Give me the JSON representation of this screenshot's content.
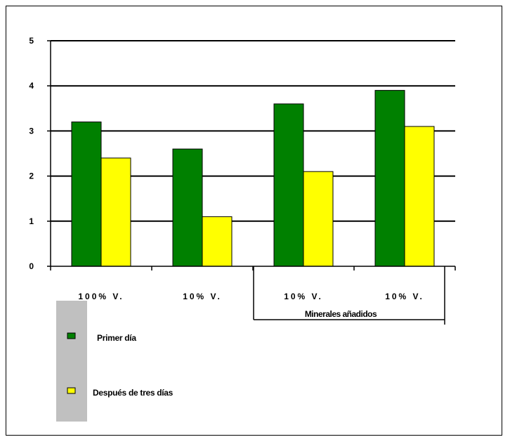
{
  "colors": {
    "series_1": "#008000",
    "series_2": "#ffff00",
    "gridline": "#000000",
    "legend_panel": "#c0c0c0"
  },
  "chart_data": {
    "type": "bar",
    "categories": [
      "100% V.",
      "10% V.",
      "10% V.",
      "10% V."
    ],
    "group_label": "Minerales añadidos",
    "group_categories": [
      2,
      3
    ],
    "series": [
      {
        "name": "Primer día",
        "values": [
          3.2,
          2.6,
          3.6,
          3.9
        ]
      },
      {
        "name": "Después de tres días",
        "values": [
          2.4,
          1.1,
          2.1,
          3.1
        ]
      }
    ],
    "y_ticks": [
      "0",
      "1",
      "2",
      "3",
      "4",
      "5"
    ],
    "ylim": [
      0,
      5
    ],
    "grid": true,
    "legend_position": "bottom-left"
  }
}
